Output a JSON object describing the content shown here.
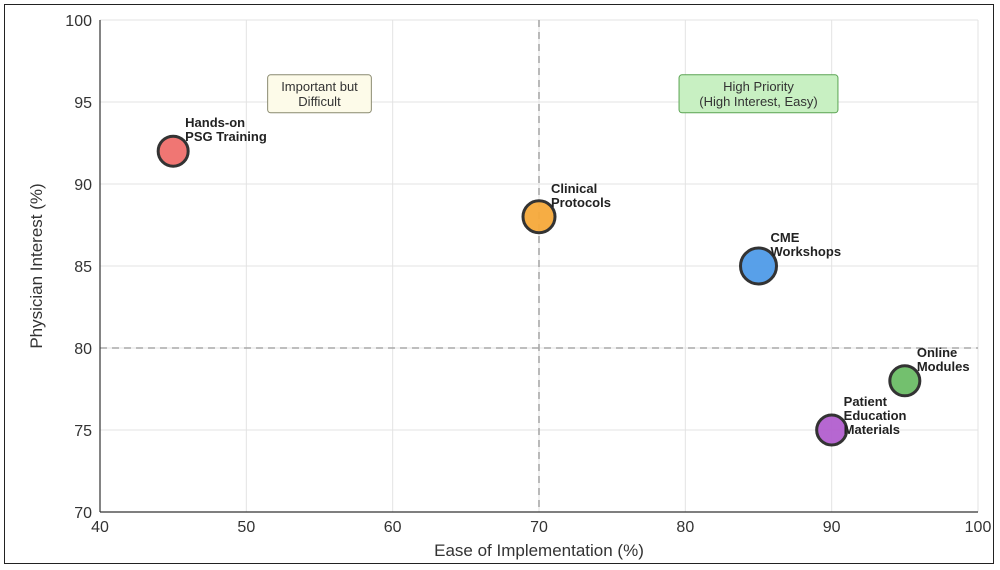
{
  "chart_data": {
    "type": "scatter",
    "xlabel": "Ease of Implementation (%)",
    "ylabel": "Physician Interest (%)",
    "xlim": [
      40,
      100
    ],
    "ylim": [
      70,
      100
    ],
    "xticks": [
      40,
      50,
      60,
      70,
      80,
      90,
      100
    ],
    "yticks": [
      70,
      75,
      80,
      85,
      90,
      95,
      100
    ],
    "grid": true,
    "reference_lines": {
      "x": 70,
      "y": 80
    },
    "points": [
      {
        "label": [
          "Hands-on",
          "PSG Training"
        ],
        "x": 45,
        "y": 92,
        "color": "#ef6f6c"
      },
      {
        "label": [
          "Clinical",
          "Protocols"
        ],
        "x": 70,
        "y": 88,
        "color": "#f5a93a"
      },
      {
        "label": [
          "CME",
          "Workshops"
        ],
        "x": 85,
        "y": 85,
        "color": "#4f9be8"
      },
      {
        "label": [
          "Online",
          "Modules"
        ],
        "x": 95,
        "y": 78,
        "color": "#6cbd66"
      },
      {
        "label": [
          "Patient",
          "Education",
          "Materials"
        ],
        "x": 90,
        "y": 75,
        "color": "#b25fcf"
      }
    ],
    "annotations": [
      {
        "lines": [
          "Important but",
          "Difficult"
        ],
        "x": 55,
        "y": 95.5,
        "bg": "#fdfbe9",
        "border": "#8a8a70"
      },
      {
        "lines": [
          "High Priority",
          "(High Interest, Easy)"
        ],
        "x": 85,
        "y": 95.5,
        "bg": "#c8f0c2",
        "border": "#5aa352"
      }
    ]
  }
}
